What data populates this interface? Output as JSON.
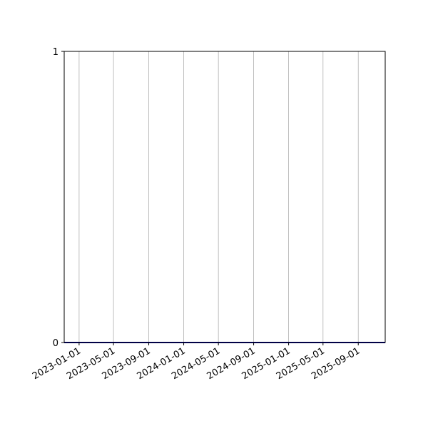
{
  "chart_data": {
    "type": "line",
    "title": "",
    "xlabel": "",
    "ylabel": "",
    "x_axis_type": "date",
    "xlim": [
      "2022-11-10",
      "2025-12-04"
    ],
    "ylim": [
      0,
      1
    ],
    "x_ticks": [
      "2023-01-01",
      "2023-05-01",
      "2023-09-01",
      "2024-01-01",
      "2024-05-01",
      "2024-09-01",
      "2025-01-01",
      "2025-05-01",
      "2025-09-01"
    ],
    "y_ticks": [
      0,
      1
    ],
    "grid": {
      "x": true,
      "y": false,
      "color": "#b0b0b0"
    },
    "series": [
      {
        "x": [
          "2022-11-10",
          "2025-12-04"
        ],
        "values": [
          0,
          0
        ],
        "color": "#00008b"
      }
    ]
  }
}
